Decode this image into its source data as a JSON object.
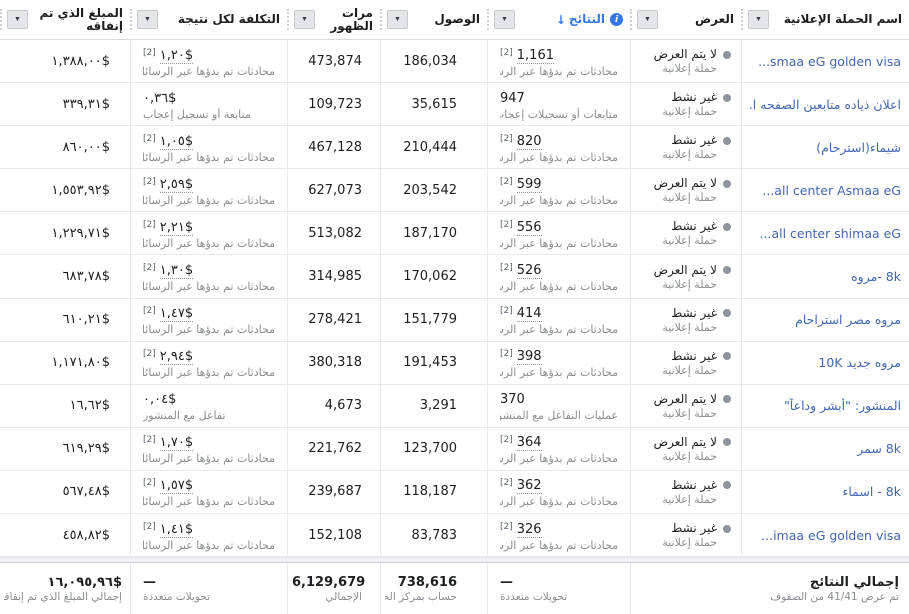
{
  "table": {
    "columns": {
      "campaign": {
        "label": "اسم الحملة الإعلانية"
      },
      "delivery": {
        "label": "العرض"
      },
      "results": {
        "label": "النتائج"
      },
      "reach": {
        "label": "الوصول"
      },
      "impressions": {
        "label": "مرات الظهور"
      },
      "cost_per_result": {
        "label": "التكلفة لكل نتيجة"
      },
      "amount_spent": {
        "label": "المبلغ الذي تم إنفاقه"
      }
    },
    "glyphs": {
      "caret": "▼",
      "sort_down": "↓",
      "info": "i"
    }
  },
  "rows": [
    {
      "name": "...smaa eG golden visa",
      "name_dir": "ltr",
      "delivery_status": "لا يتم العرض",
      "delivery_type": "حملة إعلانية",
      "results_value": "1,161",
      "results_ref": "[2]",
      "results_label": "محادثات تم بدؤها عبر الرسائل",
      "reach": "186,034",
      "impressions": "473,874",
      "cost_value": "١,٢٠$",
      "cost_ref": "[2]",
      "cost_label": "محادثات تم بدؤها عبر الرسائل",
      "spent": "١,٣٨٨,٠٠$"
    },
    {
      "name": "اعلان ذياده متابعين الصفحه ا...",
      "name_dir": "rtl",
      "delivery_status": "غير نشط",
      "delivery_type": "حملة إعلانية",
      "results_value": "947",
      "results_ref": "",
      "results_label": "متابعات أو تسجيلات إعجاب",
      "reach": "35,615",
      "impressions": "109,723",
      "cost_value": "٠,٣٦$",
      "cost_ref": "",
      "cost_label": "متابعة أو تسجيل إعجاب",
      "spent": "٣٣٩,٣١$"
    },
    {
      "name": "شيماء(استرحام)",
      "name_dir": "rtl",
      "delivery_status": "غير نشط",
      "delivery_type": "حملة إعلانية",
      "results_value": "820",
      "results_ref": "[2]",
      "results_label": "محادثات تم بدؤها عبر الرسائل",
      "reach": "210,444",
      "impressions": "467,128",
      "cost_value": "١,٠٥$",
      "cost_ref": "[2]",
      "cost_label": "محادثات تم بدؤها عبر الرسائل",
      "spent": "٨٦٠,٠٠$"
    },
    {
      "name": "...all center Asmaa eG",
      "name_dir": "ltr",
      "delivery_status": "لا يتم العرض",
      "delivery_type": "حملة إعلانية",
      "results_value": "599",
      "results_ref": "[2]",
      "results_label": "محادثات تم بدؤها عبر الرسائل",
      "reach": "203,542",
      "impressions": "627,073",
      "cost_value": "٢,٥٩$",
      "cost_ref": "[2]",
      "cost_label": "محادثات تم بدؤها عبر الرسائل",
      "spent": "١,٥٥٣,٩٢$"
    },
    {
      "name": "...all center shimaa eG",
      "name_dir": "ltr",
      "delivery_status": "غير نشط",
      "delivery_type": "حملة إعلانية",
      "results_value": "556",
      "results_ref": "[2]",
      "results_label": "محادثات تم بدؤها عبر الرسائل",
      "reach": "187,170",
      "impressions": "513,082",
      "cost_value": "٢,٢١$",
      "cost_ref": "[2]",
      "cost_label": "محادثات تم بدؤها عبر الرسائل",
      "spent": "١,٢٢٩,٧١$"
    },
    {
      "name": "8k -مروه",
      "name_dir": "rtl",
      "delivery_status": "لا يتم العرض",
      "delivery_type": "حملة إعلانية",
      "results_value": "526",
      "results_ref": "[2]",
      "results_label": "محادثات تم بدؤها عبر الرسائل",
      "reach": "170,062",
      "impressions": "314,985",
      "cost_value": "١,٣٠$",
      "cost_ref": "[2]",
      "cost_label": "محادثات تم بدؤها عبر الرسائل",
      "spent": "٦٨٣,٧٨$"
    },
    {
      "name": "مروه مصر استراحام",
      "name_dir": "rtl",
      "delivery_status": "غير نشط",
      "delivery_type": "حملة إعلانية",
      "results_value": "414",
      "results_ref": "[2]",
      "results_label": "محادثات تم بدؤها عبر الرسائل",
      "reach": "151,779",
      "impressions": "278,421",
      "cost_value": "١,٤٧$",
      "cost_ref": "[2]",
      "cost_label": "محادثات تم بدؤها عبر الرسائل",
      "spent": "٦١٠,٢١$"
    },
    {
      "name": "مروه جديد 10K",
      "name_dir": "rtl",
      "delivery_status": "غير نشط",
      "delivery_type": "حملة إعلانية",
      "results_value": "398",
      "results_ref": "[2]",
      "results_label": "محادثات تم بدؤها عبر الرسائل",
      "reach": "191,453",
      "impressions": "380,318",
      "cost_value": "٢,٩٤$",
      "cost_ref": "[2]",
      "cost_label": "محادثات تم بدؤها عبر الرسائل",
      "spent": "١,١٧١,٨٠$"
    },
    {
      "name": "المنشور: \"أبشر وداعاً\"",
      "name_dir": "rtl",
      "delivery_status": "لا يتم العرض",
      "delivery_type": "حملة إعلانية",
      "results_value": "370",
      "results_ref": "",
      "results_label": "عمليات التفاعل مع المنشور",
      "reach": "3,291",
      "impressions": "4,673",
      "cost_value": "٠,٠٤$",
      "cost_ref": "",
      "cost_label": "تفاعل مع المنشور",
      "spent": "١٦,٦٢$"
    },
    {
      "name": "8k سمر",
      "name_dir": "rtl",
      "delivery_status": "لا يتم العرض",
      "delivery_type": "حملة إعلانية",
      "results_value": "364",
      "results_ref": "[2]",
      "results_label": "محادثات تم بدؤها عبر الرسائل",
      "reach": "123,700",
      "impressions": "221,762",
      "cost_value": "١,٧٠$",
      "cost_ref": "[2]",
      "cost_label": "محادثات تم بدؤها عبر الرسائل",
      "spent": "٦١٩,٢٩$"
    },
    {
      "name": "8k - اسماء",
      "name_dir": "rtl",
      "delivery_status": "غير نشط",
      "delivery_type": "حملة إعلانية",
      "results_value": "362",
      "results_ref": "[2]",
      "results_label": "محادثات تم بدؤها عبر الرسائل",
      "reach": "118,187",
      "impressions": "239,687",
      "cost_value": "١,٥٧$",
      "cost_ref": "[2]",
      "cost_label": "محادثات تم بدؤها عبر الرسائل",
      "spent": "٥٦٧,٤٨$"
    },
    {
      "name": "...imaa eG golden visa",
      "name_dir": "ltr",
      "delivery_status": "غير نشط",
      "delivery_type": "حملة إعلانية",
      "results_value": "326",
      "results_ref": "[2]",
      "results_label": "محادثات تم بدؤها عبر الرسائل",
      "reach": "83,783",
      "impressions": "152,108",
      "cost_value": "١,٤١$",
      "cost_ref": "[2]",
      "cost_label": "محادثات تم بدؤها عبر الرسائل",
      "spent": "٤٥٨,٨٢$"
    }
  ],
  "footer": {
    "totals_label": "إجمالي النتائج",
    "rows_shown": "تم عرض 41/41 من الصفوف",
    "results_value": "—",
    "results_label": "تحويلات متعددة",
    "reach_value": "738,616",
    "reach_label": "حساب بمركز الحسا...",
    "impressions_value": "6,129,679",
    "impressions_label": "الإجمالي",
    "cost_value": "—",
    "cost_label": "تحويلات متعددة",
    "spent_value": "١٦,٠٩٥,٩٦$",
    "spent_label": "إجمالي المبلغ الذي تم إنفاقه"
  },
  "colors": {
    "campaign_link_blue": "#4267b2",
    "results_header_blue": "#3578e5",
    "text_primary": "#1c1e21",
    "text_secondary": "#8a8d91",
    "status_dot_gray": "#8d949e"
  }
}
